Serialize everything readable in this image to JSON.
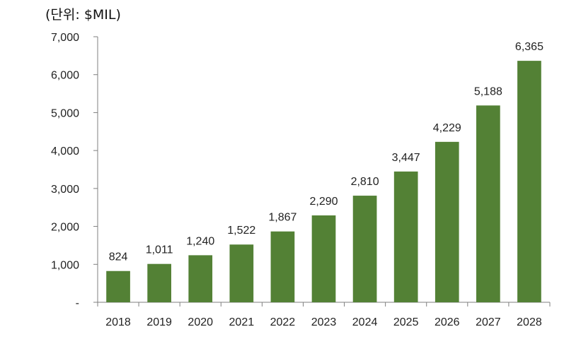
{
  "unit_label": "(단위: $MIL)",
  "chart_data": {
    "type": "bar",
    "title": "",
    "xlabel": "",
    "ylabel": "",
    "categories": [
      "2018",
      "2019",
      "2020",
      "2021",
      "2022",
      "2023",
      "2024",
      "2025",
      "2026",
      "2027",
      "2028"
    ],
    "values": [
      824,
      1011,
      1240,
      1522,
      1867,
      2290,
      2810,
      3447,
      4229,
      5188,
      6365
    ],
    "data_labels": [
      "824",
      "1,011",
      "1,240",
      "1,522",
      "1,867",
      "2,290",
      "2,810",
      "3,447",
      "4,229",
      "5,188",
      "6,365"
    ],
    "ylim": [
      0,
      7000
    ],
    "yticks": [
      0,
      1000,
      2000,
      3000,
      4000,
      5000,
      6000,
      7000
    ],
    "ytick_labels": [
      "-",
      "1,000",
      "2,000",
      "3,000",
      "4,000",
      "5,000",
      "6,000",
      "7,000"
    ],
    "grid": false,
    "legend": "none",
    "bar_color": "#538135",
    "axis_color": "#7f7f7f"
  }
}
